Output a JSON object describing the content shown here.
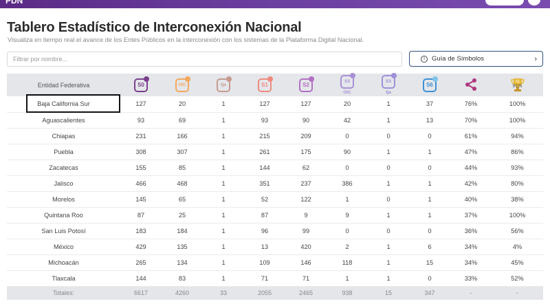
{
  "page": {
    "title": "Tablero Estadístico de Interconexión Nacional",
    "subtitle": "Visualiza en tiempo real el avance de los Entes Públicos en la interconexión con los sistemas de la Plataforma Digital Nacional."
  },
  "filter": {
    "placeholder": "Filtrar por nombre..."
  },
  "guide": {
    "label": "Guía de Símbolos"
  },
  "table": {
    "header_entity": "Entidad Federativa",
    "columns": [
      {
        "text": "S0",
        "color": "#7b3f8c",
        "dot": "#7b3f8c"
      },
      {
        "text": "OIC",
        "color": "#f2a85c",
        "dot": "#f2a85c"
      },
      {
        "text": "tja",
        "color": "#c79a8e",
        "dot": "#c79a8e"
      },
      {
        "text": "S1",
        "color": "#f08a7e",
        "dot": "#f08a7e"
      },
      {
        "text": "S2",
        "color": "#b36fc4",
        "dot": "#b36fc4"
      },
      {
        "text": "S3 OIC",
        "color": "#a98fd6",
        "dot": "#a98fd6"
      },
      {
        "text": "S3 tja",
        "color": "#9f8fd8",
        "dot": "#9f8fd8"
      },
      {
        "text": "S6",
        "color": "#3c8fd6",
        "dot": "#7fc3ea"
      }
    ],
    "trophy_pct": "91%",
    "trophy_badge": "S1",
    "rows": [
      [
        "Baja California Sur",
        "127",
        "20",
        "1",
        "127",
        "127",
        "20",
        "1",
        "37",
        "76%",
        "100%"
      ],
      [
        "Aguascalientes",
        "93",
        "69",
        "1",
        "93",
        "90",
        "42",
        "1",
        "13",
        "70%",
        "100%"
      ],
      [
        "Chiapas",
        "231",
        "166",
        "1",
        "215",
        "209",
        "0",
        "0",
        "0",
        "61%",
        "94%"
      ],
      [
        "Puebla",
        "308",
        "307",
        "1",
        "261",
        "175",
        "90",
        "1",
        "1",
        "47%",
        "86%"
      ],
      [
        "Zacatecas",
        "155",
        "85",
        "1",
        "144",
        "62",
        "0",
        "0",
        "0",
        "44%",
        "93%"
      ],
      [
        "Jalisco",
        "466",
        "468",
        "1",
        "351",
        "237",
        "386",
        "1",
        "1",
        "42%",
        "80%"
      ],
      [
        "Morelos",
        "145",
        "65",
        "1",
        "52",
        "122",
        "1",
        "0",
        "1",
        "40%",
        "38%"
      ],
      [
        "Quintana Roo",
        "87",
        "25",
        "1",
        "87",
        "9",
        "9",
        "1",
        "1",
        "37%",
        "100%"
      ],
      [
        "San Luis Potosí",
        "183",
        "184",
        "1",
        "96",
        "99",
        "0",
        "0",
        "0",
        "36%",
        "56%"
      ],
      [
        "México",
        "429",
        "135",
        "1",
        "13",
        "420",
        "2",
        "1",
        "6",
        "34%",
        "4%"
      ],
      [
        "Michoacán",
        "265",
        "134",
        "1",
        "109",
        "146",
        "118",
        "1",
        "15",
        "34%",
        "45%"
      ],
      [
        "Tlaxcala",
        "144",
        "83",
        "1",
        "71",
        "71",
        "1",
        "1",
        "0",
        "33%",
        "52%"
      ]
    ],
    "totals": [
      "Totales:",
      "6617",
      "4260",
      "33",
      "2055",
      "2465",
      "938",
      "15",
      "347",
      "-",
      "-"
    ]
  }
}
